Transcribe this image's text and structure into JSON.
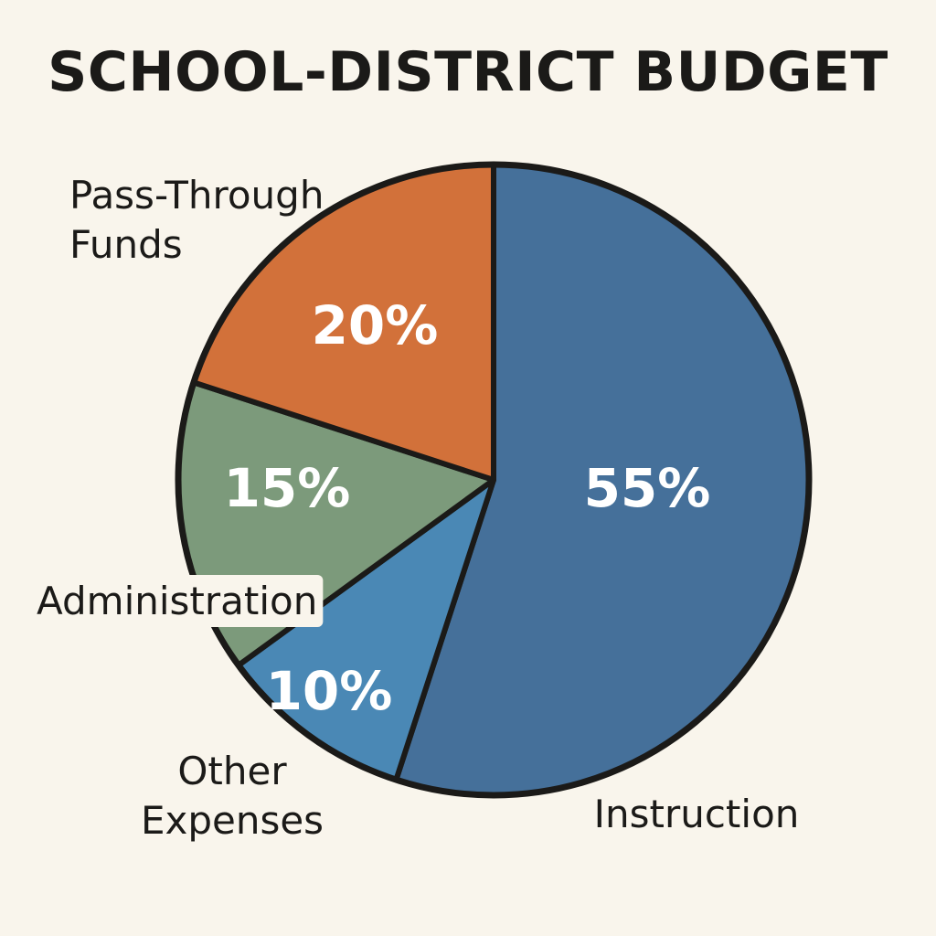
{
  "chart_data": {
    "type": "pie",
    "title": "SCHOOL-DISTRICT BUDGET",
    "unit": "%",
    "legend": "none",
    "slices": [
      {
        "label": "Instruction",
        "value": 55,
        "value_label": "55%",
        "color": "#45709a"
      },
      {
        "label": "Other Expenses",
        "value": 10,
        "value_label": "10%",
        "color": "#4a88b5"
      },
      {
        "label": "Administration",
        "value": 15,
        "value_label": "15%",
        "color": "#7c9a7b"
      },
      {
        "label": "Pass-Through Funds",
        "value": 20,
        "value_label": "20%",
        "color": "#d2713a"
      }
    ]
  }
}
